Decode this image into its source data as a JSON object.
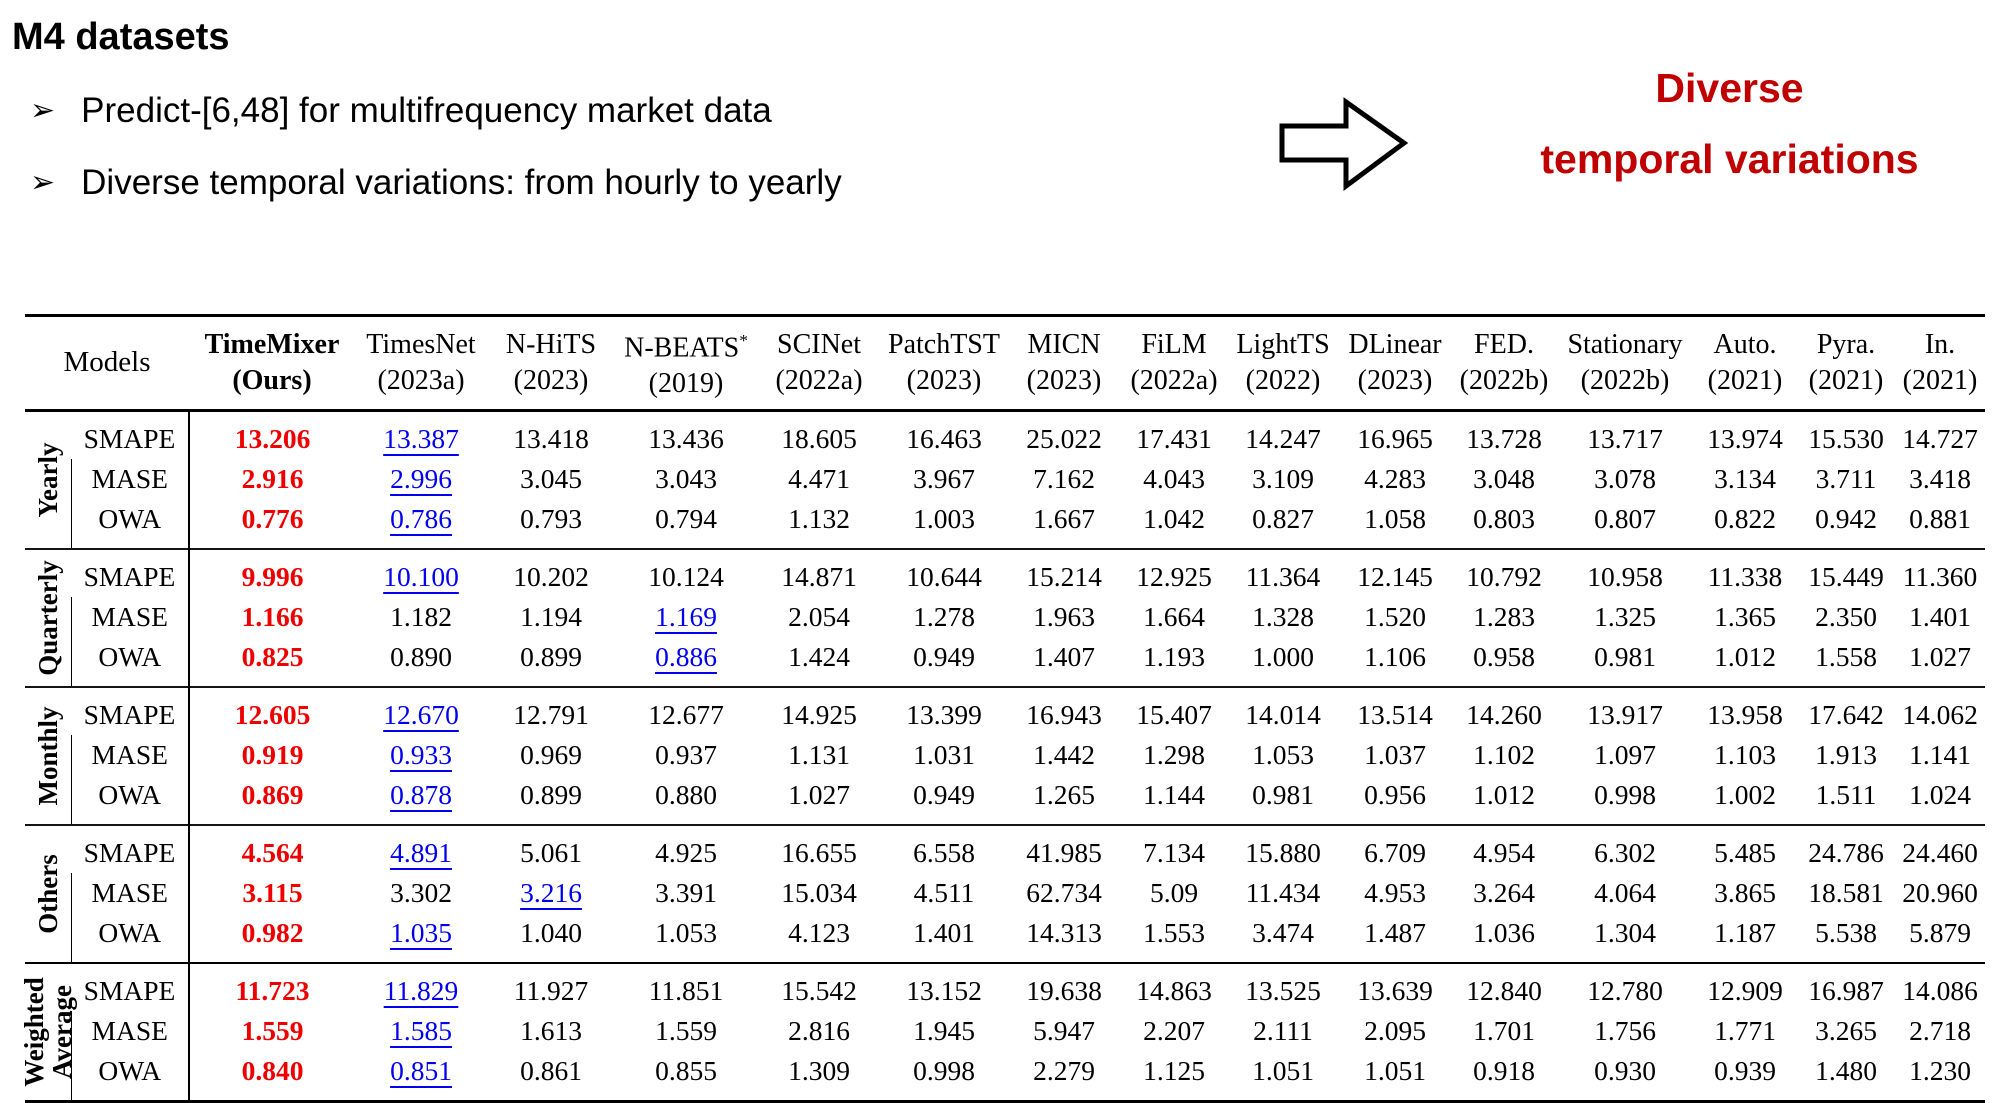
{
  "slide": {
    "title": "M4 datasets",
    "bullet_glyph": "➢",
    "bullets": [
      "Predict-[6,48] for multifrequency market data",
      "Diverse temporal variations: from hourly to yearly"
    ],
    "callout": {
      "line1": "Diverse",
      "line2": "temporal variations",
      "color": "#c00000"
    },
    "arrow_icon": "right-block-arrow"
  },
  "table": {
    "corner_label": "Models",
    "colors": {
      "best": "#ee0000",
      "second": "#0000ee"
    },
    "columns": [
      {
        "name": "TimeMixer",
        "year": "(Ours)",
        "bold": true
      },
      {
        "name": "TimesNet",
        "year": "(2023a)"
      },
      {
        "name": "N-HiTS",
        "year": "(2023)"
      },
      {
        "name": "N-BEATS",
        "sup": "*",
        "year": "(2019)"
      },
      {
        "name": "SCINet",
        "year": "(2022a)"
      },
      {
        "name": "PatchTST",
        "year": "(2023)"
      },
      {
        "name": "MICN",
        "year": "(2023)"
      },
      {
        "name": "FiLM",
        "year": "(2022a)"
      },
      {
        "name": "LightTS",
        "year": "(2022)"
      },
      {
        "name": "DLinear",
        "year": "(2023)"
      },
      {
        "name": "FED.",
        "year": "(2022b)"
      },
      {
        "name": "Stationary",
        "year": "(2022b)"
      },
      {
        "name": "Auto.",
        "year": "(2021)"
      },
      {
        "name": "Pyra.",
        "year": "(2021)"
      },
      {
        "name": "In.",
        "year": "(2021)"
      }
    ],
    "groups": [
      {
        "label": "Yearly",
        "rows": [
          {
            "metric": "SMAPE",
            "best": 0,
            "second": 1,
            "values": [
              "13.206",
              "13.387",
              "13.418",
              "13.436",
              "18.605",
              "16.463",
              "25.022",
              "17.431",
              "14.247",
              "16.965",
              "13.728",
              "13.717",
              "13.974",
              "15.530",
              "14.727"
            ]
          },
          {
            "metric": "MASE",
            "best": 0,
            "second": 1,
            "values": [
              "2.916",
              "2.996",
              "3.045",
              "3.043",
              "4.471",
              "3.967",
              "7.162",
              "4.043",
              "3.109",
              "4.283",
              "3.048",
              "3.078",
              "3.134",
              "3.711",
              "3.418"
            ]
          },
          {
            "metric": "OWA",
            "best": 0,
            "second": 1,
            "values": [
              "0.776",
              "0.786",
              "0.793",
              "0.794",
              "1.132",
              "1.003",
              "1.667",
              "1.042",
              "0.827",
              "1.058",
              "0.803",
              "0.807",
              "0.822",
              "0.942",
              "0.881"
            ]
          }
        ]
      },
      {
        "label": "Quarterly",
        "rows": [
          {
            "metric": "SMAPE",
            "best": 0,
            "second": 1,
            "values": [
              "9.996",
              "10.100",
              "10.202",
              "10.124",
              "14.871",
              "10.644",
              "15.214",
              "12.925",
              "11.364",
              "12.145",
              "10.792",
              "10.958",
              "11.338",
              "15.449",
              "11.360"
            ]
          },
          {
            "metric": "MASE",
            "best": 0,
            "second": 3,
            "values": [
              "1.166",
              "1.182",
              "1.194",
              "1.169",
              "2.054",
              "1.278",
              "1.963",
              "1.664",
              "1.328",
              "1.520",
              "1.283",
              "1.325",
              "1.365",
              "2.350",
              "1.401"
            ]
          },
          {
            "metric": "OWA",
            "best": 0,
            "second": 3,
            "values": [
              "0.825",
              "0.890",
              "0.899",
              "0.886",
              "1.424",
              "0.949",
              "1.407",
              "1.193",
              "1.000",
              "1.106",
              "0.958",
              "0.981",
              "1.012",
              "1.558",
              "1.027"
            ]
          }
        ]
      },
      {
        "label": "Monthly",
        "rows": [
          {
            "metric": "SMAPE",
            "best": 0,
            "second": 1,
            "values": [
              "12.605",
              "12.670",
              "12.791",
              "12.677",
              "14.925",
              "13.399",
              "16.943",
              "15.407",
              "14.014",
              "13.514",
              "14.260",
              "13.917",
              "13.958",
              "17.642",
              "14.062"
            ]
          },
          {
            "metric": "MASE",
            "best": 0,
            "second": 1,
            "values": [
              "0.919",
              "0.933",
              "0.969",
              "0.937",
              "1.131",
              "1.031",
              "1.442",
              "1.298",
              "1.053",
              "1.037",
              "1.102",
              "1.097",
              "1.103",
              "1.913",
              "1.141"
            ]
          },
          {
            "metric": "OWA",
            "best": 0,
            "second": 1,
            "values": [
              "0.869",
              "0.878",
              "0.899",
              "0.880",
              "1.027",
              "0.949",
              "1.265",
              "1.144",
              "0.981",
              "0.956",
              "1.012",
              "0.998",
              "1.002",
              "1.511",
              "1.024"
            ]
          }
        ]
      },
      {
        "label": "Others",
        "rows": [
          {
            "metric": "SMAPE",
            "best": 0,
            "second": 1,
            "values": [
              "4.564",
              "4.891",
              "5.061",
              "4.925",
              "16.655",
              "6.558",
              "41.985",
              "7.134",
              "15.880",
              "6.709",
              "4.954",
              "6.302",
              "5.485",
              "24.786",
              "24.460"
            ]
          },
          {
            "metric": "MASE",
            "best": 0,
            "second": 2,
            "values": [
              "3.115",
              "3.302",
              "3.216",
              "3.391",
              "15.034",
              "4.511",
              "62.734",
              "5.09",
              "11.434",
              "4.953",
              "3.264",
              "4.064",
              "3.865",
              "18.581",
              "20.960"
            ]
          },
          {
            "metric": "OWA",
            "best": 0,
            "second": 1,
            "values": [
              "0.982",
              "1.035",
              "1.040",
              "1.053",
              "4.123",
              "1.401",
              "14.313",
              "1.553",
              "3.474",
              "1.487",
              "1.036",
              "1.304",
              "1.187",
              "5.538",
              "5.879"
            ]
          }
        ]
      },
      {
        "label": "Weighted Average",
        "rows": [
          {
            "metric": "SMAPE",
            "best": 0,
            "second": 1,
            "values": [
              "11.723",
              "11.829",
              "11.927",
              "11.851",
              "15.542",
              "13.152",
              "19.638",
              "14.863",
              "13.525",
              "13.639",
              "12.840",
              "12.780",
              "12.909",
              "16.987",
              "14.086"
            ]
          },
          {
            "metric": "MASE",
            "best": 0,
            "second": 1,
            "values": [
              "1.559",
              "1.585",
              "1.613",
              "1.559",
              "2.816",
              "1.945",
              "5.947",
              "2.207",
              "2.111",
              "2.095",
              "1.701",
              "1.756",
              "1.771",
              "3.265",
              "2.718"
            ]
          },
          {
            "metric": "OWA",
            "best": 0,
            "second": 1,
            "values": [
              "0.840",
              "0.851",
              "0.861",
              "0.855",
              "1.309",
              "0.998",
              "2.279",
              "1.125",
              "1.051",
              "1.051",
              "0.918",
              "0.930",
              "0.939",
              "1.480",
              "1.230"
            ]
          }
        ]
      }
    ]
  }
}
